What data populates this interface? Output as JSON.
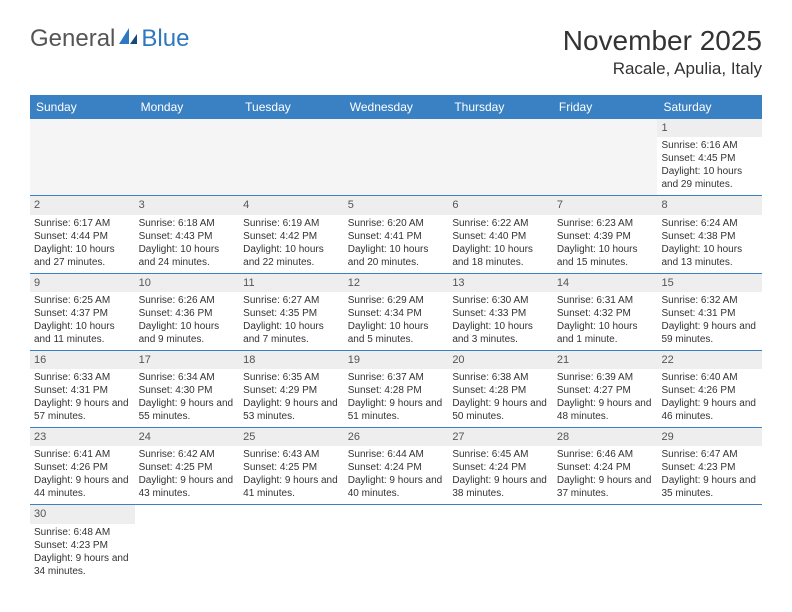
{
  "logo": {
    "part1": "General",
    "part2": "Blue"
  },
  "title": "November 2025",
  "location": "Racale, Apulia, Italy",
  "colors": {
    "header_bg": "#3a81c4",
    "header_text": "#ffffff",
    "daynum_bg": "#eeeeee",
    "cell_border": "#3a81c4",
    "logo_gray": "#555555",
    "logo_blue": "#2f78bf"
  },
  "day_names": [
    "Sunday",
    "Monday",
    "Tuesday",
    "Wednesday",
    "Thursday",
    "Friday",
    "Saturday"
  ],
  "weeks": [
    [
      {
        "empty": true
      },
      {
        "empty": true
      },
      {
        "empty": true
      },
      {
        "empty": true
      },
      {
        "empty": true
      },
      {
        "empty": true
      },
      {
        "day": "1",
        "sunrise": "Sunrise: 6:16 AM",
        "sunset": "Sunset: 4:45 PM",
        "daylight": "Daylight: 10 hours and 29 minutes."
      }
    ],
    [
      {
        "day": "2",
        "sunrise": "Sunrise: 6:17 AM",
        "sunset": "Sunset: 4:44 PM",
        "daylight": "Daylight: 10 hours and 27 minutes."
      },
      {
        "day": "3",
        "sunrise": "Sunrise: 6:18 AM",
        "sunset": "Sunset: 4:43 PM",
        "daylight": "Daylight: 10 hours and 24 minutes."
      },
      {
        "day": "4",
        "sunrise": "Sunrise: 6:19 AM",
        "sunset": "Sunset: 4:42 PM",
        "daylight": "Daylight: 10 hours and 22 minutes."
      },
      {
        "day": "5",
        "sunrise": "Sunrise: 6:20 AM",
        "sunset": "Sunset: 4:41 PM",
        "daylight": "Daylight: 10 hours and 20 minutes."
      },
      {
        "day": "6",
        "sunrise": "Sunrise: 6:22 AM",
        "sunset": "Sunset: 4:40 PM",
        "daylight": "Daylight: 10 hours and 18 minutes."
      },
      {
        "day": "7",
        "sunrise": "Sunrise: 6:23 AM",
        "sunset": "Sunset: 4:39 PM",
        "daylight": "Daylight: 10 hours and 15 minutes."
      },
      {
        "day": "8",
        "sunrise": "Sunrise: 6:24 AM",
        "sunset": "Sunset: 4:38 PM",
        "daylight": "Daylight: 10 hours and 13 minutes."
      }
    ],
    [
      {
        "day": "9",
        "sunrise": "Sunrise: 6:25 AM",
        "sunset": "Sunset: 4:37 PM",
        "daylight": "Daylight: 10 hours and 11 minutes."
      },
      {
        "day": "10",
        "sunrise": "Sunrise: 6:26 AM",
        "sunset": "Sunset: 4:36 PM",
        "daylight": "Daylight: 10 hours and 9 minutes."
      },
      {
        "day": "11",
        "sunrise": "Sunrise: 6:27 AM",
        "sunset": "Sunset: 4:35 PM",
        "daylight": "Daylight: 10 hours and 7 minutes."
      },
      {
        "day": "12",
        "sunrise": "Sunrise: 6:29 AM",
        "sunset": "Sunset: 4:34 PM",
        "daylight": "Daylight: 10 hours and 5 minutes."
      },
      {
        "day": "13",
        "sunrise": "Sunrise: 6:30 AM",
        "sunset": "Sunset: 4:33 PM",
        "daylight": "Daylight: 10 hours and 3 minutes."
      },
      {
        "day": "14",
        "sunrise": "Sunrise: 6:31 AM",
        "sunset": "Sunset: 4:32 PM",
        "daylight": "Daylight: 10 hours and 1 minute."
      },
      {
        "day": "15",
        "sunrise": "Sunrise: 6:32 AM",
        "sunset": "Sunset: 4:31 PM",
        "daylight": "Daylight: 9 hours and 59 minutes."
      }
    ],
    [
      {
        "day": "16",
        "sunrise": "Sunrise: 6:33 AM",
        "sunset": "Sunset: 4:31 PM",
        "daylight": "Daylight: 9 hours and 57 minutes."
      },
      {
        "day": "17",
        "sunrise": "Sunrise: 6:34 AM",
        "sunset": "Sunset: 4:30 PM",
        "daylight": "Daylight: 9 hours and 55 minutes."
      },
      {
        "day": "18",
        "sunrise": "Sunrise: 6:35 AM",
        "sunset": "Sunset: 4:29 PM",
        "daylight": "Daylight: 9 hours and 53 minutes."
      },
      {
        "day": "19",
        "sunrise": "Sunrise: 6:37 AM",
        "sunset": "Sunset: 4:28 PM",
        "daylight": "Daylight: 9 hours and 51 minutes."
      },
      {
        "day": "20",
        "sunrise": "Sunrise: 6:38 AM",
        "sunset": "Sunset: 4:28 PM",
        "daylight": "Daylight: 9 hours and 50 minutes."
      },
      {
        "day": "21",
        "sunrise": "Sunrise: 6:39 AM",
        "sunset": "Sunset: 4:27 PM",
        "daylight": "Daylight: 9 hours and 48 minutes."
      },
      {
        "day": "22",
        "sunrise": "Sunrise: 6:40 AM",
        "sunset": "Sunset: 4:26 PM",
        "daylight": "Daylight: 9 hours and 46 minutes."
      }
    ],
    [
      {
        "day": "23",
        "sunrise": "Sunrise: 6:41 AM",
        "sunset": "Sunset: 4:26 PM",
        "daylight": "Daylight: 9 hours and 44 minutes."
      },
      {
        "day": "24",
        "sunrise": "Sunrise: 6:42 AM",
        "sunset": "Sunset: 4:25 PM",
        "daylight": "Daylight: 9 hours and 43 minutes."
      },
      {
        "day": "25",
        "sunrise": "Sunrise: 6:43 AM",
        "sunset": "Sunset: 4:25 PM",
        "daylight": "Daylight: 9 hours and 41 minutes."
      },
      {
        "day": "26",
        "sunrise": "Sunrise: 6:44 AM",
        "sunset": "Sunset: 4:24 PM",
        "daylight": "Daylight: 9 hours and 40 minutes."
      },
      {
        "day": "27",
        "sunrise": "Sunrise: 6:45 AM",
        "sunset": "Sunset: 4:24 PM",
        "daylight": "Daylight: 9 hours and 38 minutes."
      },
      {
        "day": "28",
        "sunrise": "Sunrise: 6:46 AM",
        "sunset": "Sunset: 4:24 PM",
        "daylight": "Daylight: 9 hours and 37 minutes."
      },
      {
        "day": "29",
        "sunrise": "Sunrise: 6:47 AM",
        "sunset": "Sunset: 4:23 PM",
        "daylight": "Daylight: 9 hours and 35 minutes."
      }
    ],
    [
      {
        "day": "30",
        "sunrise": "Sunrise: 6:48 AM",
        "sunset": "Sunset: 4:23 PM",
        "daylight": "Daylight: 9 hours and 34 minutes."
      },
      {
        "empty": true
      },
      {
        "empty": true
      },
      {
        "empty": true
      },
      {
        "empty": true
      },
      {
        "empty": true
      },
      {
        "empty": true
      }
    ]
  ]
}
